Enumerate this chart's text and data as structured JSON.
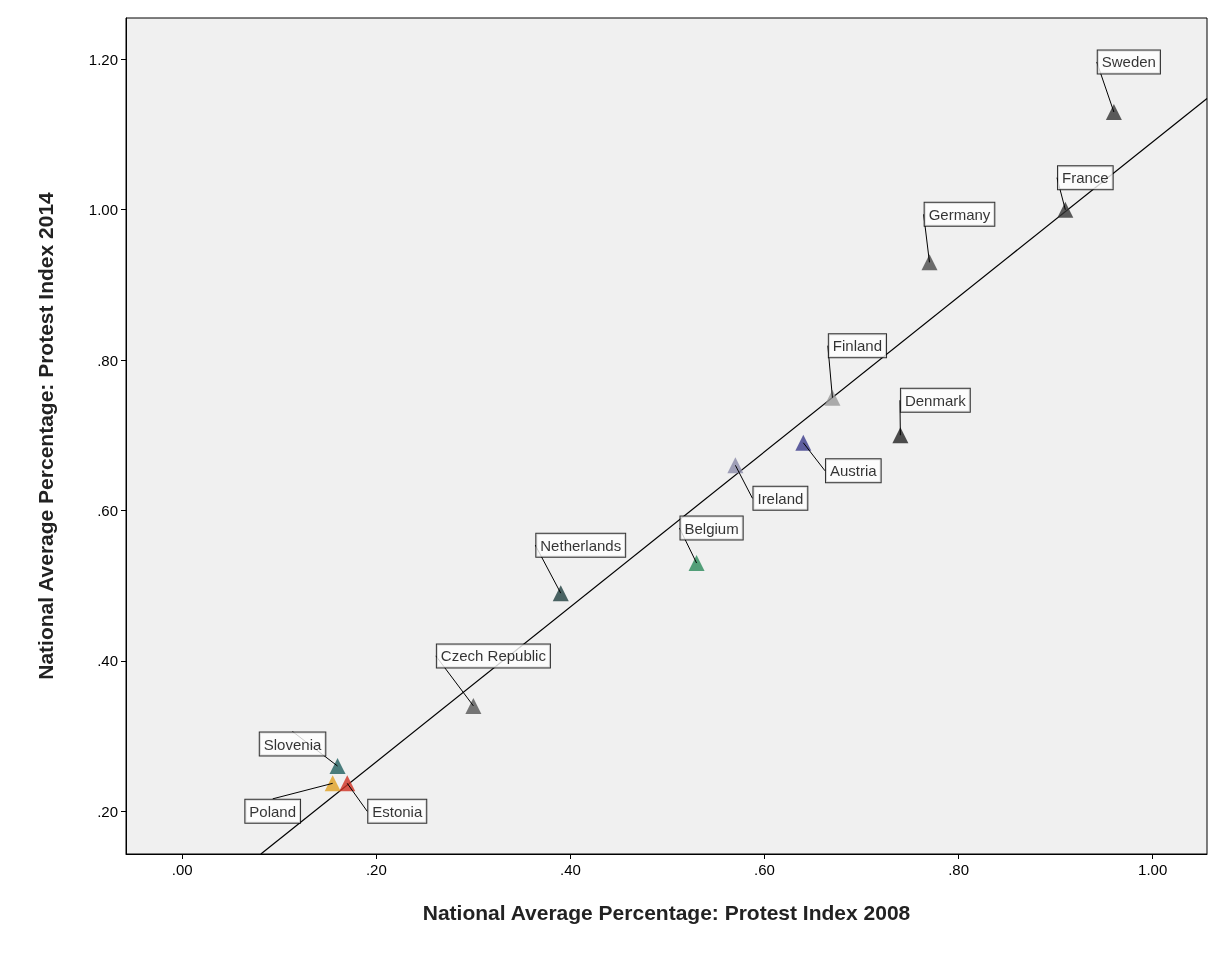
{
  "chart_data": {
    "type": "scatter",
    "xlabel": "National Average Percentage: Protest Index 2008",
    "ylabel": "National Average Percentage: Protest Index 2014",
    "xlim": [
      -0.058,
      1.056
    ],
    "ylim": [
      0.143,
      1.255
    ],
    "xticks": [
      {
        "value": 0,
        "label": ".00"
      },
      {
        "value": 0.2,
        "label": ".20"
      },
      {
        "value": 0.4,
        "label": ".40"
      },
      {
        "value": 0.6,
        "label": ".60"
      },
      {
        "value": 0.8,
        "label": ".80"
      },
      {
        "value": 1.0,
        "label": "1.00"
      }
    ],
    "yticks": [
      {
        "value": 0.2,
        "label": ".20"
      },
      {
        "value": 0.4,
        "label": ".40"
      },
      {
        "value": 0.6,
        "label": ".60"
      },
      {
        "value": 0.8,
        "label": ".80"
      },
      {
        "value": 1.0,
        "label": "1.00"
      },
      {
        "value": 1.2,
        "label": "1.20"
      }
    ],
    "grid": false,
    "series": [
      {
        "marker": "triangle",
        "x": [
          0.96,
          0.91,
          0.77,
          0.67,
          0.74,
          0.64,
          0.57,
          0.53,
          0.39,
          0.3,
          0.16,
          0.155,
          0.17
        ],
        "values": [
          1.13,
          1.0,
          0.93,
          0.75,
          0.7,
          0.69,
          0.66,
          0.53,
          0.49,
          0.34,
          0.26,
          0.237,
          0.237
        ],
        "colors": [
          "#333333",
          "#333333",
          "#4a4a4a",
          "#999999",
          "#222222",
          "#3a3a8a",
          "#8a8aa8",
          "#2a8a5a",
          "#1f3f3f",
          "#555555",
          "#1f5f5f",
          "#e0a020",
          "#d03020"
        ]
      },
      {
        "type": "line",
        "marker": "none",
        "x": [
          0.081,
          1.056
        ],
        "values": [
          0.143,
          1.148
        ],
        "color": "#000000"
      }
    ],
    "annotations": [
      {
        "text": "Sweden",
        "x": 0.96,
        "y": 1.13
      },
      {
        "text": "France",
        "x": 0.91,
        "y": 1.0
      },
      {
        "text": "Germany",
        "x": 0.77,
        "y": 0.93
      },
      {
        "text": "Finland",
        "x": 0.67,
        "y": 0.75
      },
      {
        "text": "Denmark",
        "x": 0.74,
        "y": 0.7
      },
      {
        "text": "Austria",
        "x": 0.64,
        "y": 0.69
      },
      {
        "text": "Ireland",
        "x": 0.57,
        "y": 0.66
      },
      {
        "text": "Belgium",
        "x": 0.53,
        "y": 0.53
      },
      {
        "text": "Netherlands",
        "x": 0.39,
        "y": 0.49
      },
      {
        "text": "Czech Republic",
        "x": 0.3,
        "y": 0.34
      },
      {
        "text": "Slovenia",
        "x": 0.16,
        "y": 0.26
      },
      {
        "text": "Poland",
        "x": 0.155,
        "y": 0.237
      },
      {
        "text": "Estonia",
        "x": 0.17,
        "y": 0.237
      }
    ]
  }
}
